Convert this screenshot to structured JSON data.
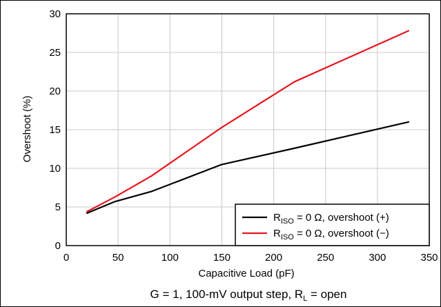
{
  "chart_data": {
    "type": "line",
    "title": "",
    "xlabel": "Capacitive Load (pF)",
    "ylabel": "Overshoot (%)",
    "xlim": [
      0,
      350
    ],
    "ylim": [
      0,
      30
    ],
    "xticks": [
      0,
      50,
      100,
      150,
      200,
      250,
      300,
      350
    ],
    "yticks": [
      0,
      5,
      10,
      15,
      20,
      25,
      30
    ],
    "grid": true,
    "legend_position": "bottom-right",
    "caption": {
      "main": "G = 1, 100-mV output step, R",
      "sub": "L",
      "tail": " = open"
    },
    "series": [
      {
        "name": "RISO = 0 Ω, overshoot (+)",
        "legend": {
          "prefix": "R",
          "sub": "ISO",
          "suffix": " = 0 Ω, overshoot (+)"
        },
        "color": "#000000",
        "x": [
          20,
          47,
          82,
          150,
          220,
          330
        ],
        "y": [
          4.2,
          5.7,
          7.0,
          10.5,
          12.6,
          16.0
        ]
      },
      {
        "name": "RISO = 0 Ω, overshoot (−)",
        "legend": {
          "prefix": "R",
          "sub": "ISO",
          "suffix": " = 0 Ω, overshoot (−)"
        },
        "color": "#e8141d",
        "x": [
          20,
          47,
          82,
          150,
          220,
          330
        ],
        "y": [
          4.4,
          6.3,
          9.0,
          15.3,
          21.2,
          27.8
        ]
      }
    ]
  }
}
